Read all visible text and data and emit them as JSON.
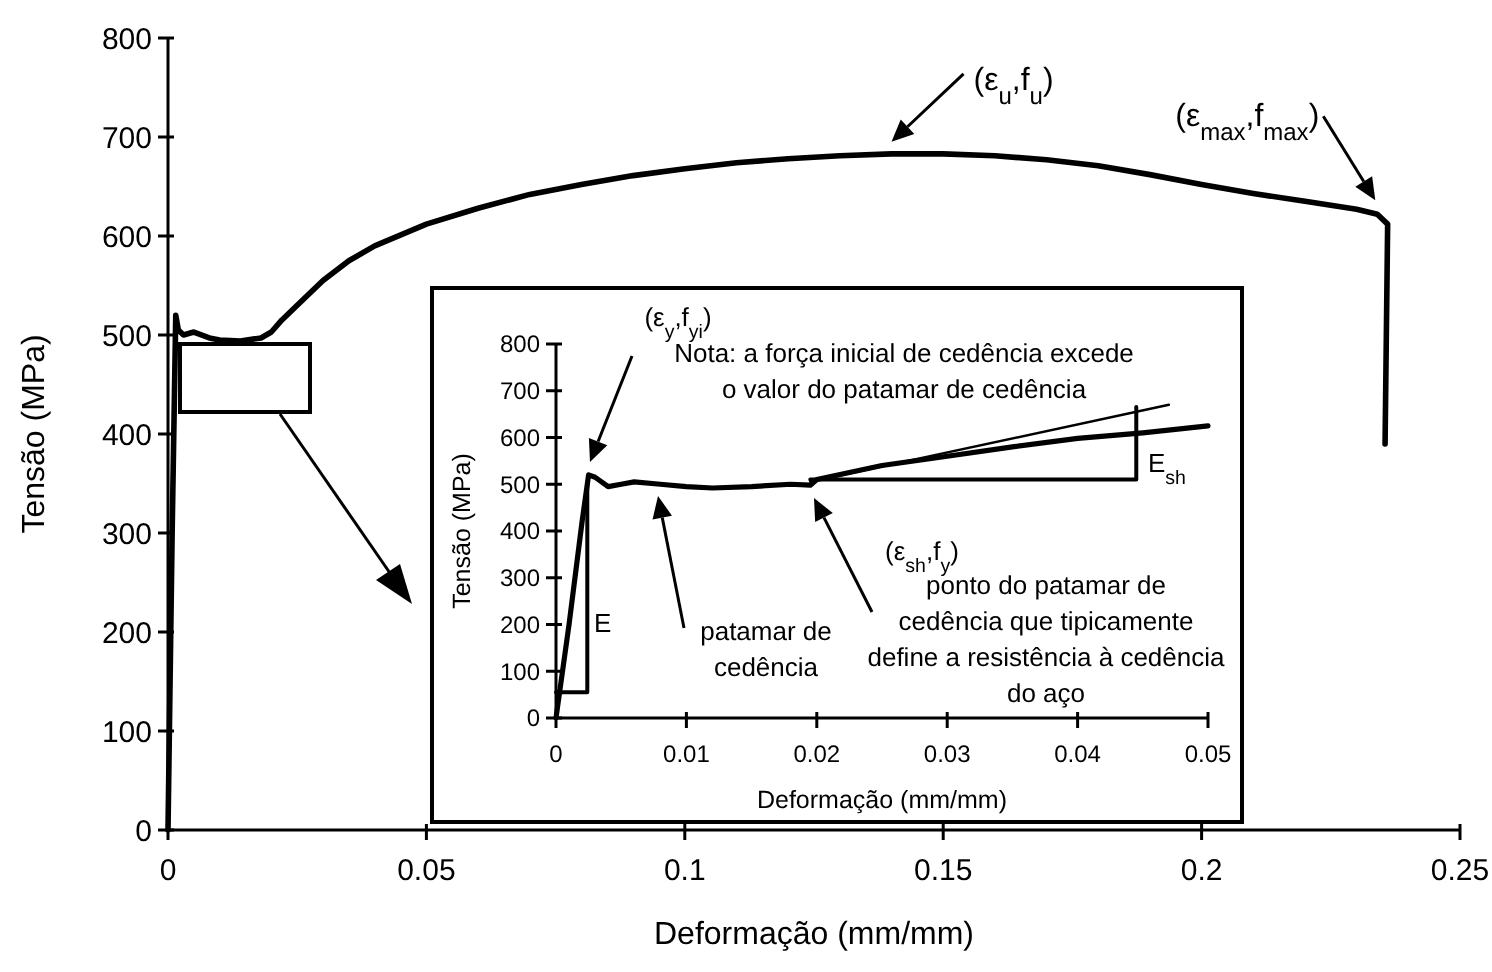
{
  "chart_data": [
    {
      "type": "line",
      "xlabel": "Deformação (mm/mm)",
      "ylabel": "Tensão (MPa)",
      "xlim": [
        0,
        0.25
      ],
      "ylim": [
        0,
        800
      ],
      "xticks": [
        0,
        0.05,
        0.1,
        0.15,
        0.2,
        0.25
      ],
      "yticks": [
        0,
        100,
        200,
        300,
        400,
        500,
        600,
        700,
        800
      ],
      "grid": false,
      "series": [
        {
          "color": "#000000",
          "x": [
            0,
            0.0008,
            0.0015,
            0.002,
            0.003,
            0.005,
            0.008,
            0.01,
            0.014,
            0.018,
            0.02,
            0.022,
            0.025,
            0.03,
            0.035,
            0.04,
            0.05,
            0.06,
            0.07,
            0.08,
            0.09,
            0.1,
            0.11,
            0.12,
            0.13,
            0.14,
            0.15,
            0.16,
            0.17,
            0.18,
            0.19,
            0.2,
            0.21,
            0.22,
            0.23,
            0.234,
            0.236,
            0.2355
          ],
          "values": [
            0,
            300,
            520,
            505,
            500,
            503,
            497,
            495,
            494,
            497,
            503,
            515,
            530,
            555,
            575,
            590,
            612,
            628,
            642,
            652,
            661,
            668,
            674,
            678,
            681,
            683,
            683,
            681,
            677,
            671,
            662,
            652,
            643,
            635,
            627,
            622,
            612,
            390
          ]
        }
      ],
      "annotations": [
        {
          "text": "(ε$_{u}$,f$_{u}$)",
          "x": 0.14,
          "y": 683
        },
        {
          "text": "(ε$_{max}$,f$_{max}$)",
          "x": 0.234,
          "y": 622
        }
      ]
    },
    {
      "type": "line",
      "xlabel": "Deformação (mm/mm)",
      "ylabel": "Tensão (MPa)",
      "xlim": [
        0,
        0.05
      ],
      "ylim": [
        0,
        800
      ],
      "xticks": [
        0,
        0.01,
        0.02,
        0.03,
        0.04,
        0.05
      ],
      "yticks": [
        0,
        100,
        200,
        300,
        400,
        500,
        600,
        700,
        800
      ],
      "grid": false,
      "series": [
        {
          "color": "#000000",
          "x": [
            0,
            0.001,
            0.002,
            0.0025,
            0.003,
            0.004,
            0.005,
            0.006,
            0.008,
            0.01,
            0.012,
            0.015,
            0.018,
            0.0195,
            0.02,
            0.025,
            0.03,
            0.035,
            0.04,
            0.045,
            0.05
          ],
          "values": [
            0,
            200,
            420,
            520,
            515,
            495,
            500,
            505,
            500,
            495,
            492,
            495,
            500,
            498,
            510,
            540,
            560,
            580,
            598,
            610,
            625
          ]
        },
        {
          "color": "#000000",
          "x": [
            0,
            0.0024,
            0.0024
          ],
          "values": [
            55,
            55,
            500
          ]
        },
        {
          "color": "#000000",
          "x": [
            0.0195,
            0.047
          ],
          "values": [
            505,
            670
          ]
        },
        {
          "color": "#000000",
          "x": [
            0.0195,
            0.0445,
            0.0445
          ],
          "values": [
            510,
            510,
            665
          ]
        }
      ],
      "annotations": [
        "(ε$_{y}$,f$_{yi}$)",
        "Nota: a força inicial de cedência excede\no valor do patamar de cedência",
        "patamar de\ncedência",
        "(ε$_{sh}$,f$_{y}$)",
        "ponto do patamar de\ncedência que tipicamente\ndefine a resistência à cedência\ndo aço",
        "E",
        "E$_{sh}$"
      ]
    }
  ]
}
